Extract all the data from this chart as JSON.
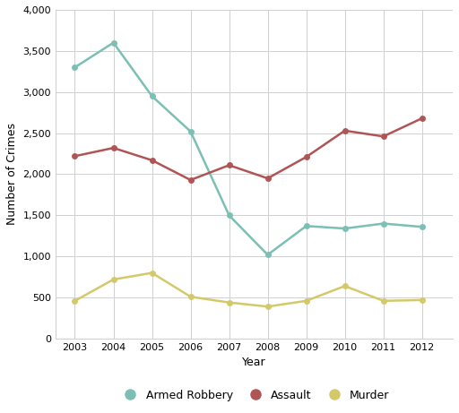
{
  "years": [
    2003,
    2004,
    2005,
    2006,
    2007,
    2008,
    2009,
    2010,
    2011,
    2012
  ],
  "armed_robbery": [
    3300,
    3600,
    2950,
    2520,
    1500,
    1020,
    1370,
    1340,
    1400,
    1360
  ],
  "assault": [
    2220,
    2320,
    2170,
    1930,
    2110,
    1950,
    2210,
    2530,
    2460,
    2680
  ],
  "murder": [
    460,
    720,
    800,
    510,
    440,
    390,
    460,
    640,
    460,
    470
  ],
  "armed_robbery_color": "#7bbfb5",
  "assault_color": "#b05555",
  "murder_color": "#d4c96a",
  "xlabel": "Year",
  "ylabel": "Number of Crimes",
  "ylim": [
    0,
    4000
  ],
  "yticks": [
    0,
    500,
    1000,
    1500,
    2000,
    2500,
    3000,
    3500,
    4000
  ],
  "background_color": "#ffffff",
  "grid_color": "#d0d0d0",
  "legend_labels": [
    "Armed Robbery",
    "Assault",
    "Murder"
  ],
  "tick_fontsize": 8,
  "label_fontsize": 9,
  "line_width": 1.8,
  "marker_size": 5
}
